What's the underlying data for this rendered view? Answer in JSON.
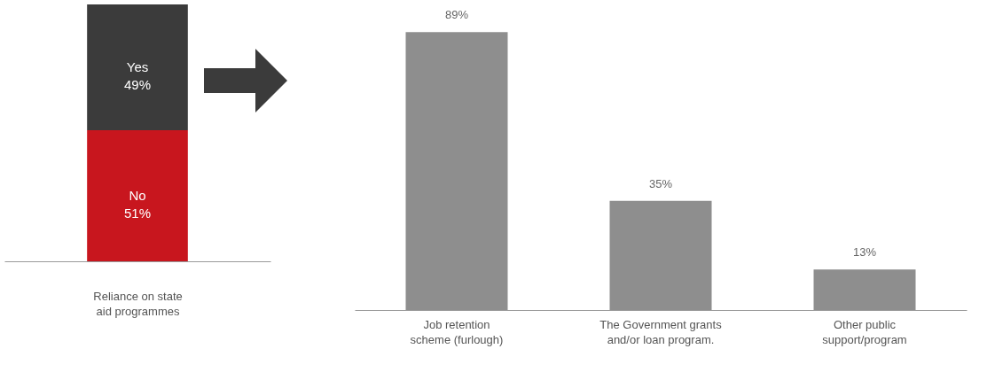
{
  "chart_data": [
    {
      "type": "bar",
      "stacked": true,
      "legend": false,
      "categories": [
        null
      ],
      "xlabel": "Reliance on state aid programmes",
      "series": [
        {
          "name": "No",
          "color": "#c8161e",
          "values": [
            51
          ],
          "value_labels": [
            "51%"
          ]
        },
        {
          "name": "Yes",
          "color": "#3b3b3b",
          "values": [
            49
          ],
          "value_labels": [
            "49%"
          ]
        }
      ]
    },
    {
      "type": "bar",
      "categories": [
        "Job retention scheme (furlough)",
        "The Government grants and/or loan program.",
        "Other public support/program"
      ],
      "values": [
        89,
        35,
        13
      ],
      "value_labels": [
        "89%",
        "35%",
        "13%"
      ],
      "color": "#8e8e8e"
    }
  ]
}
